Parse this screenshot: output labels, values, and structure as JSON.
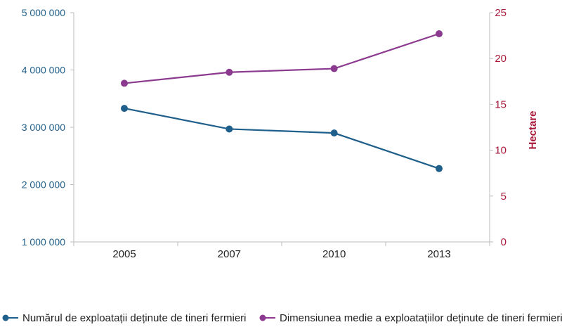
{
  "chart_data": {
    "type": "line",
    "categories": [
      "2005",
      "2007",
      "2010",
      "2013"
    ],
    "series": [
      {
        "name": "Numărul de exploatații deținute de tineri fermieri",
        "axis": "left",
        "color": "#1f5f8b",
        "values": [
          3330000,
          2970000,
          2900000,
          2280000
        ]
      },
      {
        "name": "Dimensiunea medie a exploatațiilor deținute de tineri fermieri",
        "axis": "right",
        "color": "#8b3a8f",
        "values": [
          17.3,
          18.5,
          18.9,
          22.7
        ]
      }
    ],
    "y_left": {
      "ylim": [
        1000000,
        5000000
      ],
      "ticks": [
        1000000,
        2000000,
        3000000,
        4000000,
        5000000
      ],
      "tick_labels": [
        "1 000 000",
        "2 000 000",
        "3 000 000",
        "4 000 000",
        "5 000 000"
      ],
      "color": "#1f5f8b"
    },
    "y_right": {
      "label": "Hectare",
      "ylim": [
        0,
        25
      ],
      "ticks": [
        0,
        5,
        10,
        15,
        20,
        25
      ],
      "tick_labels": [
        "0",
        "5",
        "10",
        "15",
        "20",
        "25"
      ],
      "color": "#a8193a"
    },
    "grid": false,
    "legend": "bottom"
  }
}
